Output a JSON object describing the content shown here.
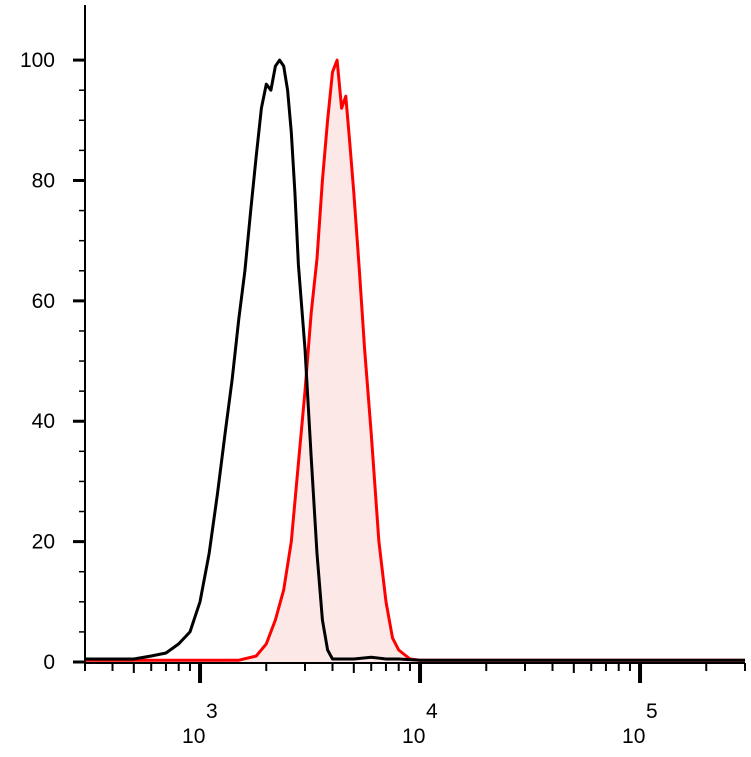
{
  "chart_data": {
    "type": "area",
    "title": "",
    "xlabel": "",
    "ylabel": "",
    "x_scale": "log",
    "xlim": [
      300,
      300000
    ],
    "ylim": [
      0,
      105
    ],
    "grid": false,
    "legend": "none",
    "y_ticks": [
      {
        "value": 0,
        "label": "0"
      },
      {
        "value": 20,
        "label": "20"
      },
      {
        "value": 40,
        "label": "40"
      },
      {
        "value": 60,
        "label": "60"
      },
      {
        "value": 80,
        "label": "80"
      },
      {
        "value": 100,
        "label": "100"
      }
    ],
    "x_major_ticks": [
      {
        "value": 1000,
        "base": "10",
        "exp": "3"
      },
      {
        "value": 10000,
        "base": "10",
        "exp": "4"
      },
      {
        "value": 100000,
        "base": "10",
        "exp": "5"
      }
    ],
    "series": [
      {
        "color": "#000000",
        "fill": "none",
        "points": [
          [
            300,
            0.5
          ],
          [
            500,
            0.5
          ],
          [
            600,
            1
          ],
          [
            700,
            1.5
          ],
          [
            800,
            3
          ],
          [
            900,
            5
          ],
          [
            1000,
            10
          ],
          [
            1100,
            18
          ],
          [
            1200,
            28
          ],
          [
            1300,
            38
          ],
          [
            1400,
            47
          ],
          [
            1500,
            57
          ],
          [
            1600,
            65
          ],
          [
            1700,
            75
          ],
          [
            1800,
            84
          ],
          [
            1900,
            92
          ],
          [
            2000,
            96
          ],
          [
            2100,
            95
          ],
          [
            2200,
            99
          ],
          [
            2300,
            100
          ],
          [
            2400,
            99
          ],
          [
            2500,
            95
          ],
          [
            2600,
            88
          ],
          [
            2700,
            78
          ],
          [
            2800,
            66
          ],
          [
            3000,
            52
          ],
          [
            3200,
            34
          ],
          [
            3400,
            18
          ],
          [
            3600,
            7
          ],
          [
            3800,
            2
          ],
          [
            4000,
            0.5
          ],
          [
            5000,
            0.5
          ],
          [
            6000,
            0.8
          ],
          [
            7000,
            0.5
          ],
          [
            8000,
            0.5
          ],
          [
            10000,
            0.3
          ],
          [
            300000,
            0.3
          ]
        ]
      },
      {
        "color": "#ff0000",
        "fill": "#fde8e8",
        "points": [
          [
            300,
            0.3
          ],
          [
            1500,
            0.3
          ],
          [
            1800,
            1
          ],
          [
            2000,
            3
          ],
          [
            2200,
            7
          ],
          [
            2400,
            12
          ],
          [
            2600,
            20
          ],
          [
            2800,
            33
          ],
          [
            3000,
            45
          ],
          [
            3200,
            58
          ],
          [
            3400,
            67
          ],
          [
            3600,
            80
          ],
          [
            3800,
            90
          ],
          [
            4000,
            98
          ],
          [
            4200,
            100
          ],
          [
            4400,
            92
          ],
          [
            4600,
            94
          ],
          [
            4800,
            86
          ],
          [
            5000,
            78
          ],
          [
            5300,
            65
          ],
          [
            5600,
            52
          ],
          [
            6000,
            38
          ],
          [
            6500,
            20
          ],
          [
            7000,
            10
          ],
          [
            7500,
            4
          ],
          [
            8000,
            2
          ],
          [
            9000,
            0.5
          ],
          [
            10000,
            0.3
          ],
          [
            300000,
            0.3
          ]
        ]
      }
    ]
  }
}
